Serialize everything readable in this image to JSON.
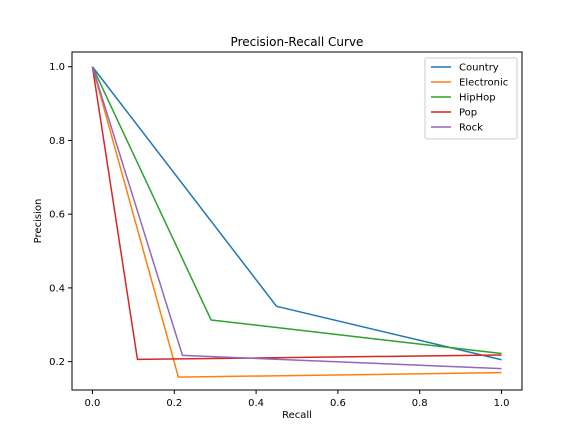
{
  "chart_data": {
    "type": "line",
    "title": "Precision-Recall Curve",
    "xlabel": "Recall",
    "ylabel": "Precision",
    "xlim": [
      -0.05,
      1.05
    ],
    "ylim": [
      0.123,
      1.04
    ],
    "xticks": [
      0.0,
      0.2,
      0.4,
      0.6,
      0.8,
      1.0
    ],
    "yticks": [
      0.2,
      0.4,
      0.6,
      0.8,
      1.0
    ],
    "grid": false,
    "legend_position": "top-right",
    "series": [
      {
        "name": "Country",
        "color": "#1f77b4",
        "x": [
          0.0,
          0.45,
          1.0
        ],
        "y": [
          1.0,
          0.35,
          0.205
        ]
      },
      {
        "name": "Electronic",
        "color": "#ff7f0e",
        "x": [
          0.0,
          0.21,
          1.0
        ],
        "y": [
          1.0,
          0.158,
          0.17
        ]
      },
      {
        "name": "HipHop",
        "color": "#2ca02c",
        "x": [
          0.0,
          0.29,
          1.0
        ],
        "y": [
          1.0,
          0.313,
          0.222
        ]
      },
      {
        "name": "Pop",
        "color": "#d62728",
        "x": [
          0.0,
          0.11,
          1.0
        ],
        "y": [
          1.0,
          0.206,
          0.218
        ]
      },
      {
        "name": "Rock",
        "color": "#9467bd",
        "x": [
          0.0,
          0.22,
          1.0
        ],
        "y": [
          1.0,
          0.217,
          0.181
        ]
      }
    ]
  }
}
